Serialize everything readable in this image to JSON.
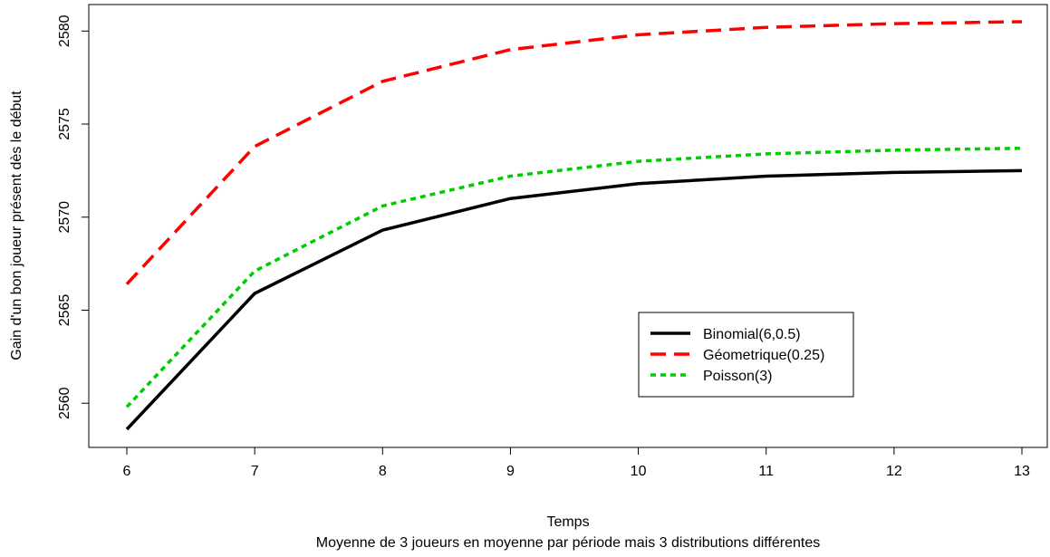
{
  "chart_data": {
    "type": "line",
    "xlabel": "Temps",
    "caption": "Moyenne de 3 joueurs en moyenne par période mais 3 distributions différentes",
    "ylabel": "Gain d'un bon joueur présent dès le début",
    "x": [
      6,
      7,
      8,
      9,
      10,
      11,
      12,
      13
    ],
    "xlim": [
      6,
      13
    ],
    "ylim": [
      2558.6,
      2580.5
    ],
    "xticks": [
      "6",
      "7",
      "8",
      "9",
      "10",
      "11",
      "12",
      "13"
    ],
    "yticks": [
      "2560",
      "2565",
      "2570",
      "2575",
      "2580"
    ],
    "grid": false,
    "legend_position": "bottom-right",
    "series": [
      {
        "name": "Binomial(6,0.5)",
        "color": "#000000",
        "dash": "solid",
        "values": [
          2558.6,
          2565.9,
          2569.3,
          2571.0,
          2571.8,
          2572.2,
          2572.4,
          2572.5
        ]
      },
      {
        "name": "Géometrique(0.25)",
        "color": "#ff0000",
        "dash": "long-dash",
        "values": [
          2566.4,
          2573.8,
          2577.3,
          2579.0,
          2579.8,
          2580.2,
          2580.4,
          2580.5
        ]
      },
      {
        "name": "Poisson(3)",
        "color": "#00cd00",
        "dash": "dotted",
        "values": [
          2559.8,
          2567.1,
          2570.6,
          2572.2,
          2573.0,
          2573.4,
          2573.6,
          2573.7
        ]
      }
    ]
  }
}
